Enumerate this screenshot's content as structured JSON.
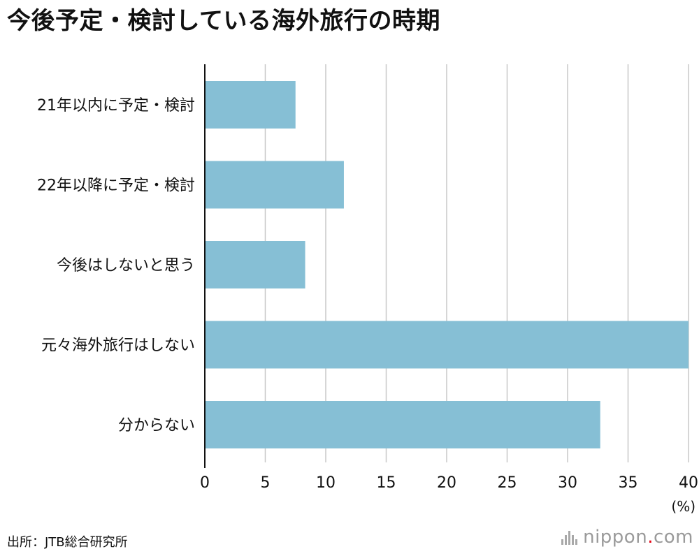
{
  "chart_data": {
    "type": "bar",
    "orientation": "horizontal",
    "title": "今後予定・検討している海外旅行の時期",
    "categories": [
      "21年以内に予定・検討",
      "22年以降に予定・検討",
      "今後はしないと思う",
      "元々海外旅行はしない",
      "分からない"
    ],
    "values": [
      7.5,
      11.5,
      8.3,
      40.0,
      32.7
    ],
    "xlim": [
      0,
      40
    ],
    "xticks": [
      0,
      5,
      10,
      15,
      20,
      25,
      30,
      35,
      40
    ],
    "unit_label": "(%)",
    "grid": true,
    "bar_color": "#86bfd5",
    "grid_color": "#c8c8c8",
    "axis_color": "#111111"
  },
  "source": "出所：JTB総合研究所",
  "logo": {
    "name": "nippon",
    "dot": ".",
    "suffix": "com"
  }
}
